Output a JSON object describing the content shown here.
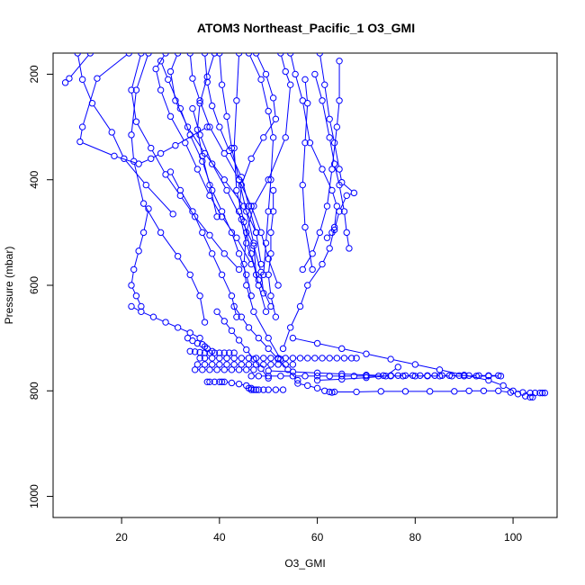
{
  "chart_data": {
    "type": "line",
    "title": "ATOM3 Northeast_Pacific_1 O3_GMI",
    "xlabel": "O3_GMI",
    "ylabel": "Pressure (mbar)",
    "xlim": [
      6.0,
      109.0
    ],
    "ylim": [
      1040,
      160
    ],
    "y_reversed": true,
    "x_ticks": [
      20,
      40,
      60,
      80,
      100
    ],
    "x_tick_labels": [
      "20",
      "40",
      "60",
      "80",
      "100"
    ],
    "y_ticks": [
      200,
      400,
      600,
      800,
      1000
    ],
    "y_tick_labels": [
      "200",
      "400",
      "600",
      "800",
      "1000"
    ],
    "color": "#0000ff",
    "marker": "open-circle",
    "grid": false,
    "series": [
      {
        "x": [
          13.6,
          9.3,
          8.5
        ],
        "y": [
          160,
          208,
          216
        ]
      },
      {
        "x": [
          11.0,
          12.0,
          14.0,
          18.0,
          20.5,
          25.0,
          30.5
        ],
        "y": [
          160,
          210,
          255,
          310,
          360,
          410,
          465
        ]
      },
      {
        "x": [
          21.5,
          15.0,
          12.0,
          11.5,
          18.5,
          23.5,
          26.0,
          28.0,
          31.0,
          37.5
        ],
        "y": [
          160,
          208,
          300,
          328,
          355,
          370,
          360,
          350,
          335,
          300
        ]
      },
      {
        "x": [
          25.5,
          23.0,
          22.0,
          22.5,
          24.5,
          28.0,
          31.5,
          34.0,
          36.0,
          37.0
        ],
        "y": [
          160,
          230,
          315,
          365,
          445,
          500,
          545,
          580,
          620,
          670
        ]
      },
      {
        "x": [
          24.0,
          22.0,
          23.0,
          26.0,
          29.0,
          32.0,
          35.0,
          38.0,
          41.0,
          44.0
        ],
        "y": [
          160,
          230,
          290,
          340,
          390,
          430,
          470,
          505,
          540,
          570
        ]
      },
      {
        "x": [
          29.0,
          27.0,
          28.0,
          30.0,
          33.0,
          35.5,
          38.0,
          40.5,
          43.5,
          46.5
        ],
        "y": [
          160,
          190,
          230,
          280,
          330,
          380,
          430,
          470,
          510,
          560
        ]
      },
      {
        "x": [
          31.5,
          30.0,
          31.0,
          33.5,
          37.0,
          41.0,
          45.0,
          47.5
        ],
        "y": [
          160,
          195,
          250,
          300,
          350,
          400,
          450,
          500
        ]
      },
      {
        "x": [
          28.0,
          29.5,
          32.0,
          34.0,
          36.5,
          38.5,
          40.5,
          42.5,
          44.0,
          45.5,
          46.5
        ],
        "y": [
          175,
          210,
          265,
          315,
          365,
          420,
          460,
          500,
          540,
          580,
          620
        ]
      },
      {
        "x": [
          37.0,
          37.5,
          38.5,
          40.0,
          42.0,
          44.5,
          46.0,
          47.5,
          48.5
        ],
        "y": [
          160,
          215,
          260,
          300,
          345,
          395,
          450,
          500,
          560
        ]
      },
      {
        "x": [
          34.0,
          34.5,
          36.0,
          38.0,
          41.0,
          44.0,
          46.5,
          48.5,
          50.0,
          52.0
        ],
        "y": [
          160,
          208,
          250,
          300,
          350,
          400,
          450,
          500,
          550,
          600
        ]
      },
      {
        "x": [
          39.0,
          37.5,
          36.0,
          35.5,
          36.5,
          38.0,
          39.5
        ],
        "y": [
          160,
          205,
          255,
          305,
          355,
          410,
          470
        ]
      },
      {
        "x": [
          40.0,
          40.5,
          41.5,
          42.5,
          44.0,
          45.5,
          47.0,
          47.5
        ],
        "y": [
          160,
          220,
          280,
          340,
          400,
          460,
          520,
          580
        ]
      },
      {
        "x": [
          47.5,
          49.5,
          51.0,
          51.5,
          49.0,
          46.5,
          44.5,
          44.0,
          45.5,
          48.0,
          50.5
        ],
        "y": [
          160,
          200,
          245,
          285,
          320,
          360,
          410,
          460,
          520,
          590,
          640
        ]
      },
      {
        "x": [
          46.0,
          48.5,
          50.0,
          51.0,
          50.5,
          50.0,
          49.5,
          49.0
        ],
        "y": [
          160,
          210,
          270,
          320,
          400,
          460,
          520,
          580
        ]
      },
      {
        "x": [
          44.0,
          43.5,
          43.0,
          43.5,
          45.0,
          46.5,
          48.0,
          49.5
        ],
        "y": [
          160,
          250,
          340,
          420,
          480,
          540,
          600,
          650
        ]
      },
      {
        "x": [
          52.5,
          53.5,
          54.5,
          53.5,
          50.0,
          47.0,
          45.5,
          45.0,
          45.5,
          47.0,
          50.0,
          52.5
        ],
        "y": [
          160,
          195,
          220,
          320,
          400,
          450,
          500,
          560,
          600,
          650,
          700,
          740
        ]
      },
      {
        "x": [
          54.5,
          55.5,
          57.0,
          58.5,
          61.0,
          63.0,
          64.0,
          63.5,
          62.5,
          61.0,
          58.0,
          56.5,
          54.5,
          53.0
        ],
        "y": [
          160,
          200,
          250,
          330,
          380,
          420,
          450,
          490,
          530,
          560,
          600,
          640,
          680,
          720
        ]
      },
      {
        "x": [
          57.5,
          58.0,
          57.5,
          57.0,
          57.5,
          59.0
        ],
        "y": [
          210,
          255,
          330,
          410,
          490,
          570
        ]
      },
      {
        "x": [
          60.5,
          61.5,
          62.5,
          63.5,
          64.5,
          65.0,
          67.5,
          66.0,
          64.5,
          63.5,
          63.0,
          62.0
        ],
        "y": [
          160,
          220,
          285,
          330,
          380,
          405,
          425,
          430,
          460,
          495,
          500,
          510
        ]
      },
      {
        "x": [
          59.5,
          61.0,
          62.5,
          63.5,
          64.5,
          65.5,
          66.0,
          66.5
        ],
        "y": [
          200,
          250,
          320,
          370,
          410,
          460,
          500,
          530
        ]
      },
      {
        "x": [
          64.5,
          64.5,
          64.0,
          63.0,
          62.0,
          60.5,
          59.0,
          57.0
        ],
        "y": [
          175,
          250,
          300,
          380,
          450,
          500,
          540,
          570
        ]
      },
      {
        "x": [
          51.0,
          51.0,
          50.5,
          50.5,
          50.0,
          50.5,
          51.5
        ],
        "y": [
          420,
          460,
          500,
          540,
          580,
          620,
          660
        ]
      },
      {
        "x": [
          34.5,
          36.0,
          38.5,
          41.5,
          44.5,
          47.0,
          48.5,
          49.0
        ],
        "y": [
          265,
          315,
          370,
          420,
          475,
          525,
          575,
          615
        ]
      },
      {
        "x": [
          30.0,
          32.0,
          34.5,
          36.5,
          38.5,
          40.5,
          42.5,
          43.5
        ],
        "y": [
          385,
          420,
          460,
          500,
          540,
          580,
          620,
          660
        ]
      },
      {
        "x": [
          25.5,
          24.5,
          23.5,
          22.5,
          22.0,
          23.0,
          24.0
        ],
        "y": [
          455,
          500,
          535,
          570,
          600,
          620,
          640
        ]
      },
      {
        "x": [
          22.0,
          24.0,
          26.5,
          29.0,
          31.5,
          34.0,
          36.0
        ],
        "y": [
          640,
          650,
          660,
          670,
          680,
          690,
          700
        ]
      },
      {
        "x": [
          33.5,
          34.5,
          35.5,
          36.5,
          37.0,
          37.5,
          38.5
        ],
        "y": [
          700,
          705,
          710,
          712,
          716,
          720,
          725
        ]
      },
      {
        "x": [
          34.0,
          35.0,
          36.0,
          37.0,
          38.0,
          39.0,
          40.0,
          41.0,
          42.0,
          43.0
        ],
        "y": [
          725,
          726,
          727,
          728,
          728,
          728,
          728,
          728,
          728,
          728
        ]
      },
      {
        "x": [
          36.0,
          37.0,
          38.5,
          40.0,
          41.5,
          43.0,
          44.5,
          46.0,
          47.5,
          49.0,
          50.5,
          52.0,
          53.5,
          55.0,
          56.5,
          58.0,
          59.5,
          61.0,
          62.5,
          64.0,
          65.5,
          67.0,
          68.0
        ],
        "y": [
          738,
          738,
          738,
          738,
          738,
          738,
          738,
          738,
          738,
          738,
          738,
          738,
          738,
          738,
          738,
          738,
          738,
          738,
          738,
          738,
          738,
          738,
          738
        ]
      },
      {
        "x": [
          35.5,
          37.0,
          38.5,
          40.0,
          41.5,
          43.0,
          44.5,
          46.0,
          47.5,
          49.0,
          50.5,
          52.0,
          53.5,
          55.0
        ],
        "y": [
          750,
          750,
          750,
          750,
          750,
          750,
          750,
          750,
          750,
          750,
          750,
          750,
          750,
          750
        ]
      },
      {
        "x": [
          35.0,
          36.5,
          38.0,
          39.5,
          41.0,
          42.5,
          44.0,
          45.5,
          47.0
        ],
        "y": [
          760,
          760,
          760,
          760,
          760,
          760,
          760,
          760,
          760
        ]
      },
      {
        "x": [
          46.5,
          48.0,
          50.0,
          52.5,
          55.0,
          57.5,
          60.0,
          62.5,
          65.0,
          67.5,
          70.0,
          72.5,
          75.0,
          77.5,
          80.0,
          82.5,
          85.0,
          87.5,
          90.0,
          92.5,
          95.0,
          97.5
        ],
        "y": [
          772,
          772,
          772,
          772,
          772,
          772,
          772,
          772,
          772,
          772,
          772,
          772,
          772,
          772,
          772,
          772,
          772,
          772,
          772,
          772,
          772,
          772
        ]
      },
      {
        "x": [
          50.0,
          55.0,
          60.0,
          65.0,
          70.0,
          73.5,
          75.0,
          76.5,
          78.0,
          79.5,
          81.0,
          82.5,
          84.0,
          85.5,
          87.0,
          89.0,
          91.0,
          93.0,
          95.0,
          97.0
        ],
        "y": [
          762,
          764,
          766,
          768,
          770,
          771,
          771,
          771,
          771,
          771,
          771,
          771,
          771,
          771,
          771,
          771,
          771,
          771,
          771,
          771
        ]
      },
      {
        "x": [
          60.0,
          65.0,
          70.0,
          74.0,
          76.5
        ],
        "y": [
          780,
          778,
          775,
          772,
          755
        ]
      },
      {
        "x": [
          55.0,
          60.0,
          65.0,
          70.0,
          75.0,
          80.0,
          85.0,
          90.0,
          95.0,
          98.0,
          100.0,
          102.0,
          103.5,
          104.5,
          105.5,
          106.0,
          106.5
        ],
        "y": [
          700,
          710,
          720,
          730,
          740,
          750,
          760,
          770,
          780,
          790,
          800,
          803,
          804,
          804,
          804,
          804,
          804
        ]
      },
      {
        "x": [
          63.5,
          68.0,
          73.0,
          78.0,
          83.0,
          88.0,
          91.0,
          94.0,
          97.0,
          99.5,
          101.0,
          102.5,
          103.5,
          104.0
        ],
        "y": [
          802,
          802,
          801,
          801,
          801,
          801,
          800,
          800,
          800,
          803,
          806,
          810,
          812,
          812
        ]
      },
      {
        "x": [
          41.0,
          42.5,
          44.0,
          45.5,
          46.5
        ],
        "y": [
          783,
          785,
          787,
          790,
          795
        ]
      },
      {
        "x": [
          37.5,
          38.0,
          39.0,
          40.0,
          40.5
        ],
        "y": [
          783,
          783,
          783,
          783,
          783
        ]
      },
      {
        "x": [
          46.0,
          46.5,
          47.0,
          47.5,
          48.0,
          49.0,
          50.0,
          51.5,
          53.0
        ],
        "y": [
          795,
          798,
          798,
          798,
          798,
          798,
          798,
          798,
          798
        ]
      },
      {
        "x": [
          56.0,
          58.0,
          60.0,
          61.5,
          62.5,
          63.0
        ],
        "y": [
          786,
          790,
          795,
          800,
          802,
          803
        ]
      },
      {
        "x": [
          43.0,
          44.5,
          46.0,
          48.0,
          50.0,
          52.0,
          54.0,
          56.0
        ],
        "y": [
          640,
          660,
          680,
          700,
          720,
          740,
          760,
          780
        ]
      },
      {
        "x": [
          39.5,
          41.0,
          42.5,
          44.0,
          45.5,
          47.0,
          48.5,
          50.0
        ],
        "y": [
          650,
          668,
          686,
          704,
          722,
          740,
          758,
          776
        ]
      }
    ]
  }
}
